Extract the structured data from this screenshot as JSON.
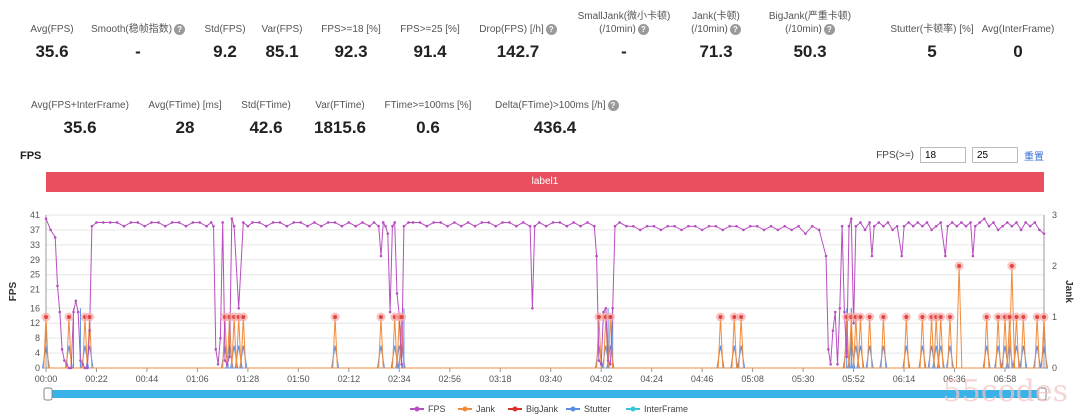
{
  "metrics_row1": [
    {
      "label": "Avg(FPS)",
      "value": "35.6",
      "help": false
    },
    {
      "label": "Smooth(稳帧指数)",
      "value": "-",
      "help": true
    },
    {
      "label": "Std(FPS)",
      "value": "9.2",
      "help": false
    },
    {
      "label": "Var(FPS)",
      "value": "85.1",
      "help": false
    },
    {
      "label": "FPS>=18 [%]",
      "value": "92.3",
      "help": false
    },
    {
      "label": "FPS>=25 [%]",
      "value": "91.4",
      "help": false
    },
    {
      "label": "Drop(FPS) [/h]",
      "value": "142.7",
      "help": true
    },
    {
      "label": "SmallJank(微小卡顿)|(/10min)",
      "value": "-",
      "help": true
    },
    {
      "label": "Jank(卡顿)|(/10min)",
      "value": "71.3",
      "help": true
    },
    {
      "label": "BigJank(严重卡顿)|(/10min)",
      "value": "50.3",
      "help": true
    },
    {
      "label": "Stutter(卡顿率) [%]",
      "value": "5",
      "help": false
    },
    {
      "label": "Avg(InterFrame)",
      "value": "0",
      "help": false
    }
  ],
  "metrics_row2": [
    {
      "label": "Avg(FPS+InterFrame)",
      "value": "35.6",
      "help": false
    },
    {
      "label": "Avg(FTime) [ms]",
      "value": "28",
      "help": false
    },
    {
      "label": "Std(FTime)",
      "value": "42.6",
      "help": false
    },
    {
      "label": "Var(FTime)",
      "value": "1815.6",
      "help": false
    },
    {
      "label": "FTime>=100ms [%]",
      "value": "0.6",
      "help": false
    },
    {
      "label": "Delta(FTime)>100ms [/h]",
      "value": "436.4",
      "help": true
    }
  ],
  "fps_section": {
    "title": "FPS",
    "threshold_label": "FPS(>=)",
    "threshold1": "18",
    "threshold2": "25",
    "reset_label": "重置"
  },
  "label_bar": "label1",
  "watermark": "55codes",
  "colors": {
    "fps": "#b84fc0",
    "jank": "#f08c3c",
    "bigjank": "#d9332b",
    "stutter": "#5b8ee6",
    "interframe": "#38c6d6",
    "label": "#e9505f",
    "scroll": "#39b2e8"
  },
  "chart_data": {
    "type": "line",
    "ylabel_left": "FPS",
    "ylabel_right": "Jank",
    "yticks_left": [
      0,
      4,
      8,
      12,
      16,
      21,
      25,
      29,
      33,
      37,
      41
    ],
    "yticks_right": [
      0,
      1,
      2,
      3
    ],
    "xticks": [
      "00:00",
      "00:22",
      "00:44",
      "01:06",
      "01:28",
      "01:50",
      "02:12",
      "02:34",
      "02:56",
      "03:18",
      "03:40",
      "04:02",
      "04:24",
      "04:46",
      "05:08",
      "05:30",
      "05:52",
      "06:14",
      "06:36",
      "06:58"
    ],
    "x_range_seconds": [
      0,
      435
    ],
    "legend": [
      "FPS",
      "Jank",
      "BigJank",
      "Stutter",
      "InterFrame"
    ],
    "legend_position": "bottom",
    "fps_points": [
      [
        0,
        40
      ],
      [
        2,
        37
      ],
      [
        4,
        35
      ],
      [
        5,
        22
      ],
      [
        6,
        15
      ],
      [
        7,
        5
      ],
      [
        8,
        2
      ],
      [
        9,
        1
      ],
      [
        10,
        0
      ],
      [
        11,
        0
      ],
      [
        12,
        15
      ],
      [
        13,
        18
      ],
      [
        14,
        15
      ],
      [
        15,
        2
      ],
      [
        16,
        1
      ],
      [
        17,
        0
      ],
      [
        18,
        0
      ],
      [
        19,
        10
      ],
      [
        20,
        38
      ],
      [
        22,
        39
      ],
      [
        25,
        39
      ],
      [
        28,
        39
      ],
      [
        31,
        39
      ],
      [
        34,
        38
      ],
      [
        37,
        39
      ],
      [
        40,
        39
      ],
      [
        43,
        38
      ],
      [
        46,
        39
      ],
      [
        49,
        39
      ],
      [
        52,
        38
      ],
      [
        55,
        39
      ],
      [
        58,
        39
      ],
      [
        61,
        38
      ],
      [
        64,
        39
      ],
      [
        67,
        39
      ],
      [
        70,
        38
      ],
      [
        72,
        39
      ],
      [
        73,
        38
      ],
      [
        74,
        5
      ],
      [
        75,
        1
      ],
      [
        76,
        8
      ],
      [
        77,
        39
      ],
      [
        78,
        2
      ],
      [
        79,
        1
      ],
      [
        80,
        3
      ],
      [
        81,
        40
      ],
      [
        82,
        38
      ],
      [
        84,
        16
      ],
      [
        86,
        39
      ],
      [
        88,
        38
      ],
      [
        90,
        39
      ],
      [
        93,
        39
      ],
      [
        96,
        38
      ],
      [
        99,
        39
      ],
      [
        102,
        39
      ],
      [
        105,
        38
      ],
      [
        108,
        39
      ],
      [
        111,
        39
      ],
      [
        114,
        38
      ],
      [
        117,
        39
      ],
      [
        120,
        38
      ],
      [
        123,
        39
      ],
      [
        126,
        39
      ],
      [
        129,
        38
      ],
      [
        132,
        39
      ],
      [
        135,
        38
      ],
      [
        138,
        39
      ],
      [
        141,
        38
      ],
      [
        143,
        39
      ],
      [
        145,
        38
      ],
      [
        146,
        30
      ],
      [
        147,
        39
      ],
      [
        148,
        38
      ],
      [
        149,
        36
      ],
      [
        150,
        15
      ],
      [
        151,
        38
      ],
      [
        152,
        39
      ],
      [
        153,
        20
      ],
      [
        154,
        14
      ],
      [
        155,
        1
      ],
      [
        156,
        38
      ],
      [
        158,
        39
      ],
      [
        160,
        39
      ],
      [
        163,
        39
      ],
      [
        166,
        38
      ],
      [
        169,
        39
      ],
      [
        172,
        39
      ],
      [
        175,
        38
      ],
      [
        178,
        39
      ],
      [
        181,
        38
      ],
      [
        184,
        39
      ],
      [
        187,
        38
      ],
      [
        190,
        39
      ],
      [
        193,
        39
      ],
      [
        196,
        38
      ],
      [
        199,
        39
      ],
      [
        202,
        39
      ],
      [
        205,
        38
      ],
      [
        208,
        39
      ],
      [
        211,
        38
      ],
      [
        212,
        16
      ],
      [
        213,
        38
      ],
      [
        215,
        39
      ],
      [
        218,
        38
      ],
      [
        221,
        39
      ],
      [
        224,
        39
      ],
      [
        227,
        38
      ],
      [
        230,
        39
      ],
      [
        233,
        38
      ],
      [
        236,
        39
      ],
      [
        239,
        38
      ],
      [
        240,
        30
      ],
      [
        241,
        2
      ],
      [
        242,
        1
      ],
      [
        243,
        15
      ],
      [
        244,
        16
      ],
      [
        245,
        2
      ],
      [
        246,
        1
      ],
      [
        247,
        16
      ],
      [
        248,
        38
      ],
      [
        250,
        39
      ],
      [
        253,
        38
      ],
      [
        256,
        38
      ],
      [
        259,
        37
      ],
      [
        262,
        38
      ],
      [
        265,
        38
      ],
      [
        268,
        37
      ],
      [
        271,
        38
      ],
      [
        274,
        38
      ],
      [
        277,
        37
      ],
      [
        280,
        38
      ],
      [
        283,
        38
      ],
      [
        286,
        37
      ],
      [
        289,
        38
      ],
      [
        292,
        38
      ],
      [
        295,
        37
      ],
      [
        298,
        38
      ],
      [
        301,
        38
      ],
      [
        304,
        37
      ],
      [
        307,
        38
      ],
      [
        310,
        38
      ],
      [
        313,
        37
      ],
      [
        316,
        38
      ],
      [
        319,
        37
      ],
      [
        322,
        38
      ],
      [
        325,
        37
      ],
      [
        328,
        38
      ],
      [
        331,
        36
      ],
      [
        334,
        38
      ],
      [
        337,
        37
      ],
      [
        340,
        30
      ],
      [
        341,
        5
      ],
      [
        342,
        1
      ],
      [
        343,
        10
      ],
      [
        344,
        15
      ],
      [
        345,
        1
      ],
      [
        346,
        16
      ],
      [
        347,
        38
      ],
      [
        348,
        15
      ],
      [
        349,
        3
      ],
      [
        350,
        38
      ],
      [
        351,
        40
      ],
      [
        352,
        12
      ],
      [
        353,
        38
      ],
      [
        355,
        39
      ],
      [
        357,
        37
      ],
      [
        359,
        39
      ],
      [
        360,
        30
      ],
      [
        361,
        38
      ],
      [
        363,
        39
      ],
      [
        365,
        38
      ],
      [
        367,
        39
      ],
      [
        369,
        37
      ],
      [
        371,
        38
      ],
      [
        373,
        30
      ],
      [
        374,
        38
      ],
      [
        376,
        39
      ],
      [
        378,
        38
      ],
      [
        380,
        39
      ],
      [
        382,
        38
      ],
      [
        384,
        39
      ],
      [
        386,
        37
      ],
      [
        388,
        38
      ],
      [
        390,
        39
      ],
      [
        392,
        30
      ],
      [
        393,
        38
      ],
      [
        395,
        39
      ],
      [
        397,
        38
      ],
      [
        399,
        39
      ],
      [
        401,
        38
      ],
      [
        403,
        39
      ],
      [
        404,
        30
      ],
      [
        405,
        38
      ],
      [
        407,
        39
      ],
      [
        409,
        40
      ],
      [
        411,
        38
      ],
      [
        413,
        39
      ],
      [
        415,
        37
      ],
      [
        417,
        38
      ],
      [
        419,
        39
      ],
      [
        421,
        38
      ],
      [
        423,
        39
      ],
      [
        425,
        37
      ],
      [
        427,
        39
      ],
      [
        429,
        38
      ],
      [
        431,
        39
      ],
      [
        433,
        37
      ],
      [
        435,
        36
      ]
    ],
    "jank_markers_seconds": [
      0,
      10,
      17,
      19,
      78,
      80,
      82,
      84,
      86,
      126,
      146,
      152,
      154,
      155,
      241,
      244,
      246,
      294,
      300,
      303,
      349,
      351,
      353,
      355,
      359,
      365,
      375,
      382,
      386,
      388,
      390,
      394,
      410,
      415,
      418,
      420,
      423,
      426,
      432,
      435
    ],
    "jank2_markers_seconds": [
      398,
      421
    ]
  }
}
